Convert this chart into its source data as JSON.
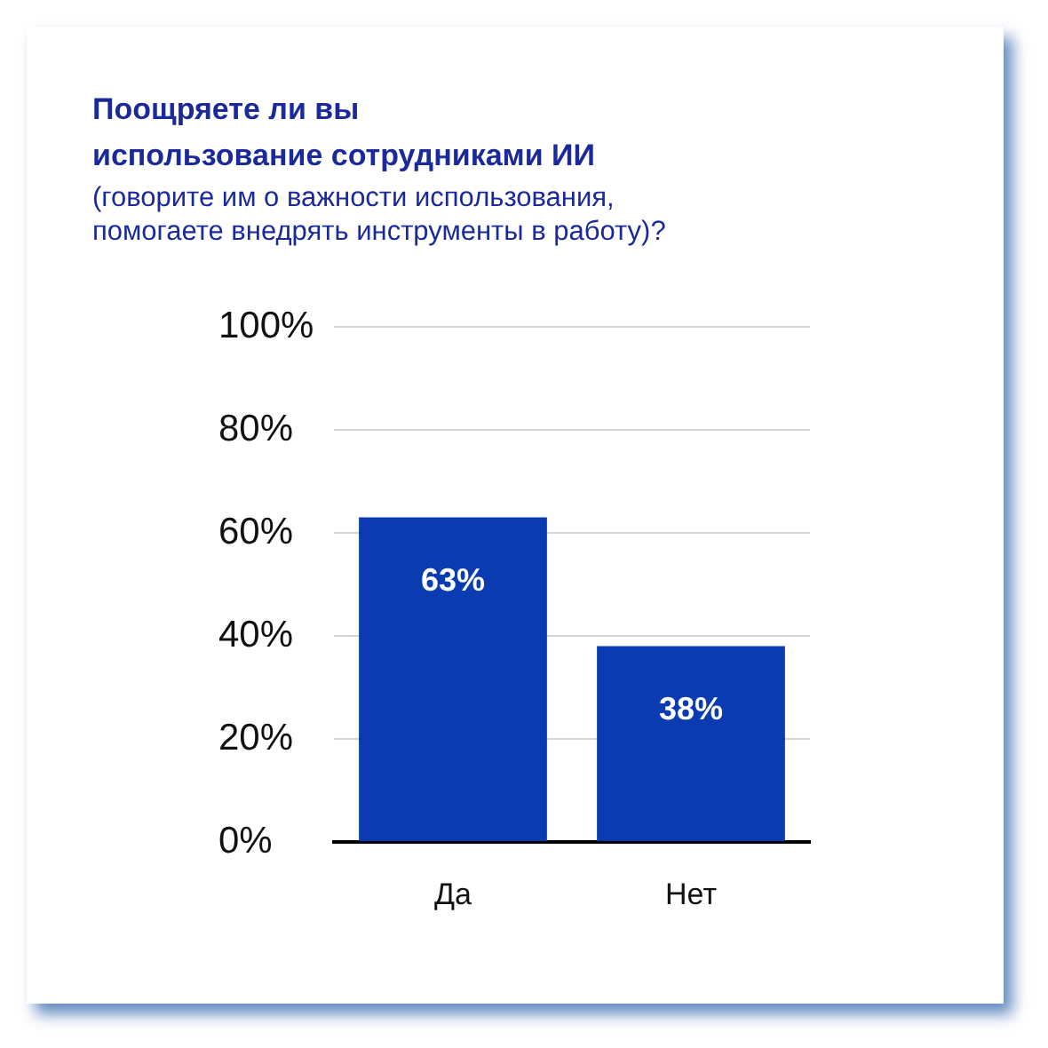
{
  "chart_data": {
    "type": "bar",
    "title": "Поощряете ли вы использование сотрудниками ИИ",
    "subtitle": "(говорите им о важности использования, помогаете внедрять инструменты в работу)?",
    "categories": [
      "Да",
      "Нет"
    ],
    "values": [
      63,
      38
    ],
    "color": "#0a3bb0",
    "value_labels": [
      "63%",
      "38%"
    ],
    "ylim": [
      0,
      100
    ],
    "yticks": [
      {
        "value": 0,
        "label": "0%"
      },
      {
        "value": 20,
        "label": "20%"
      },
      {
        "value": 40,
        "label": "40%"
      },
      {
        "value": 60,
        "label": "60%"
      },
      {
        "value": 80,
        "label": "80%"
      },
      {
        "value": 100,
        "label": "100%"
      }
    ],
    "grid": "y"
  }
}
